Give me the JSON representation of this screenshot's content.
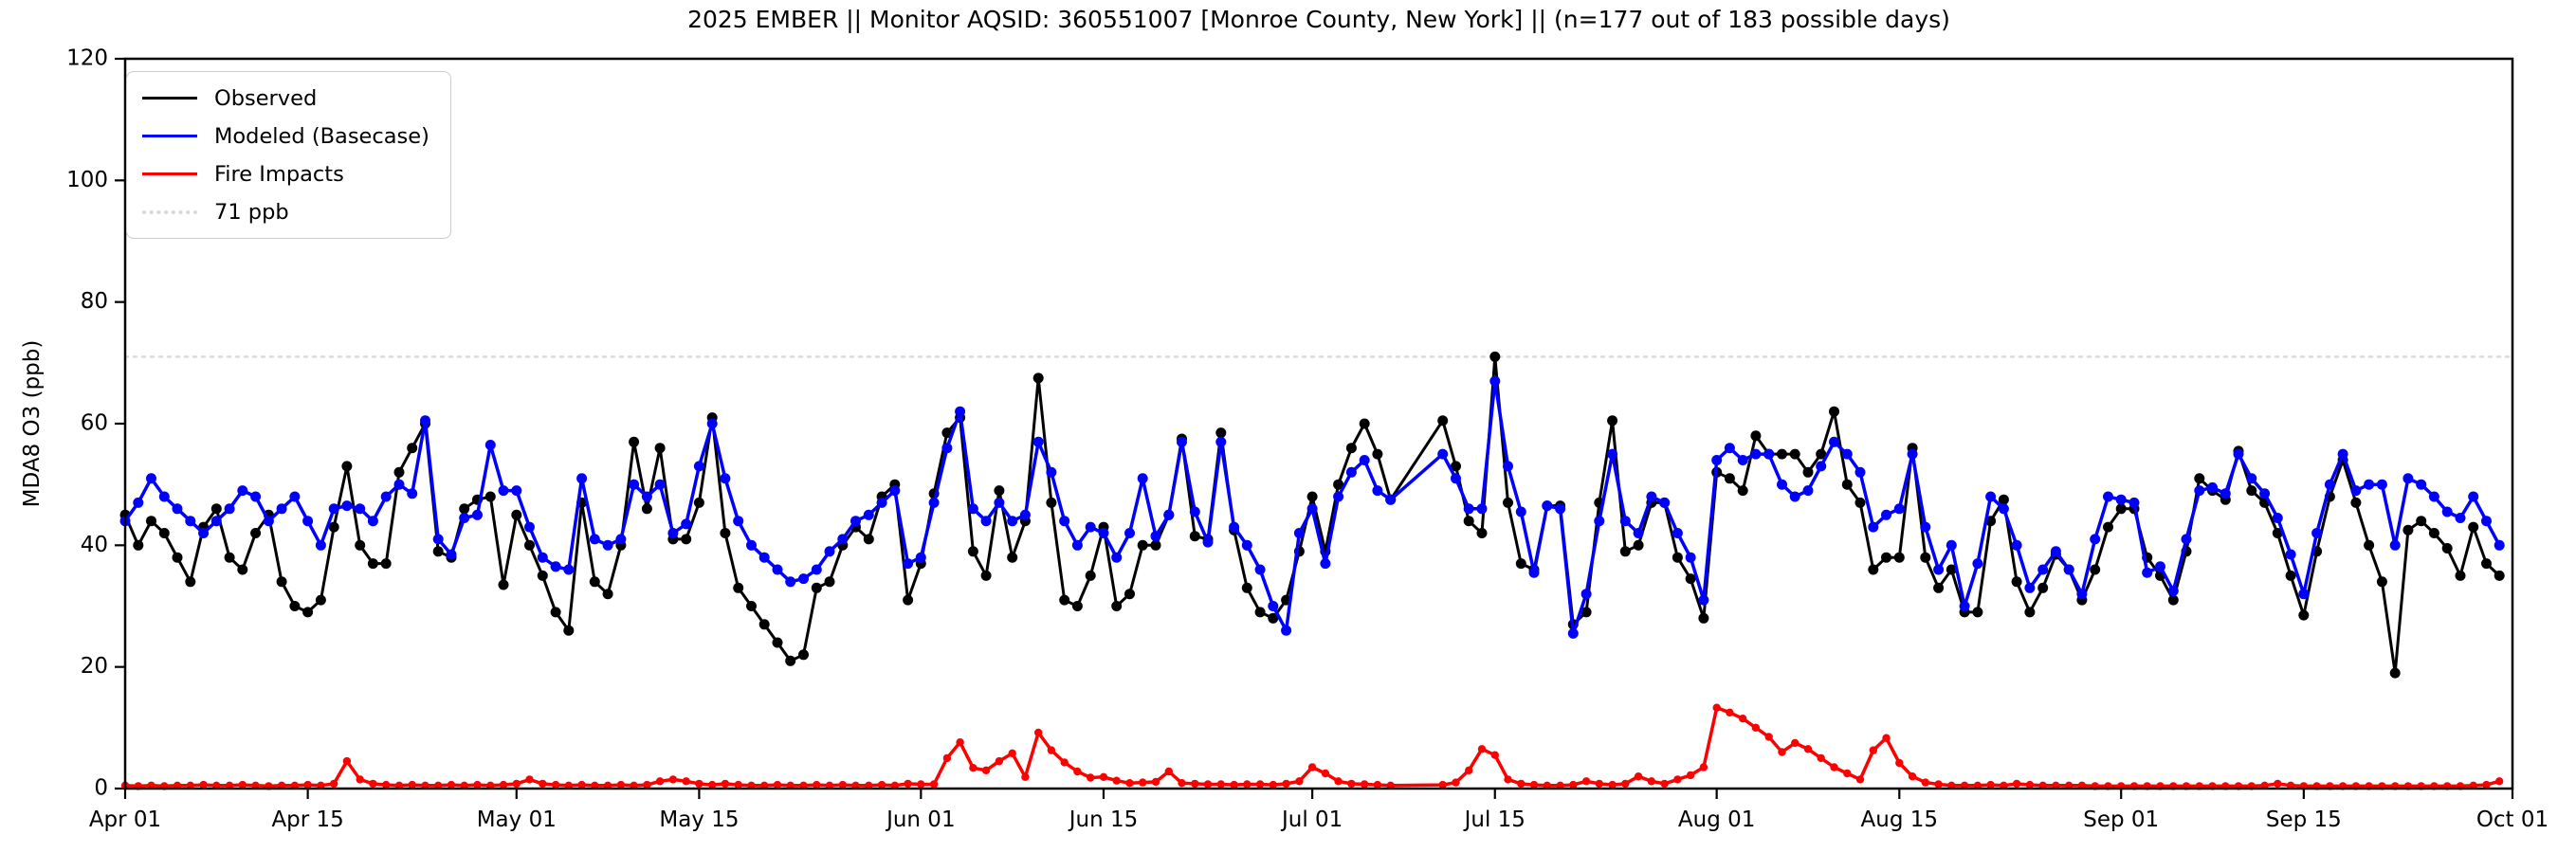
{
  "title": "2025 EMBER || Monitor AQSID: 360551007 [Monroe County, New York] || (n=177 out of 183 possible days)",
  "y_axis": {
    "label": "MDA8 O3 (ppb)",
    "min": 0,
    "max": 120,
    "ticks": [
      0,
      20,
      40,
      60,
      80,
      100,
      120
    ]
  },
  "x_axis": {
    "total_days": 183,
    "ticks": [
      {
        "day": 0,
        "label": "Apr 01"
      },
      {
        "day": 14,
        "label": "Apr 15"
      },
      {
        "day": 30,
        "label": "May 01"
      },
      {
        "day": 44,
        "label": "May 15"
      },
      {
        "day": 61,
        "label": "Jun 01"
      },
      {
        "day": 75,
        "label": "Jun 15"
      },
      {
        "day": 91,
        "label": "Jul 01"
      },
      {
        "day": 105,
        "label": "Jul 15"
      },
      {
        "day": 122,
        "label": "Aug 01"
      },
      {
        "day": 136,
        "label": "Aug 15"
      },
      {
        "day": 153,
        "label": "Sep 01"
      },
      {
        "day": 167,
        "label": "Sep 15"
      },
      {
        "day": 183,
        "label": "Oct 01"
      }
    ]
  },
  "legend": [
    {
      "label": "Observed",
      "color": "#000000",
      "style": "solid"
    },
    {
      "label": "Modeled (Basecase)",
      "color": "#0000ff",
      "style": "solid"
    },
    {
      "label": "Fire Impacts",
      "color": "#ff0000",
      "style": "solid"
    },
    {
      "label": "71 ppb",
      "color": "#d9d9d9",
      "style": "dotted"
    }
  ],
  "threshold": {
    "value": 71,
    "label": "71 ppb",
    "color": "#d9d9d9"
  },
  "chart_data": {
    "type": "line",
    "title": "2025 EMBER || Monitor AQSID: 360551007 [Monroe County, New York] || (n=177 out of 183 possible days)",
    "xlabel": "",
    "ylabel": "MDA8 O3 (ppb)",
    "ylim": [
      0,
      120
    ],
    "x_start": "Apr 01",
    "x_end": "Oct 01",
    "grid": false,
    "legend_position": "upper left",
    "threshold_line": 71,
    "series": [
      {
        "name": "Observed",
        "color": "#000000",
        "marker": "circle",
        "values": [
          45,
          40,
          44,
          42,
          38,
          34,
          43,
          46,
          38,
          36,
          42,
          45,
          34,
          30,
          29,
          31,
          43,
          53,
          40,
          37,
          37,
          52,
          56,
          60,
          39,
          38,
          46,
          47.5,
          48,
          33.5,
          45,
          40,
          35,
          29,
          26,
          47,
          34,
          32,
          40,
          57,
          46,
          56,
          41,
          41,
          47,
          61,
          42,
          33,
          30,
          27,
          24,
          21,
          22,
          33,
          34,
          40,
          43,
          41,
          48,
          50,
          31,
          37,
          48.5,
          58.5,
          61,
          39,
          35,
          49,
          38,
          44,
          67.5,
          47,
          31,
          30,
          35,
          43,
          30,
          32,
          40,
          40,
          45,
          57.5,
          41.5,
          41,
          58.5,
          42.5,
          33,
          29,
          28,
          31,
          39,
          48,
          39,
          50,
          56,
          60,
          55,
          47.5,
          null,
          null,
          null,
          60.5,
          53,
          44,
          42,
          71,
          47,
          37,
          36,
          46.5,
          46.5,
          27,
          29,
          47,
          60.5,
          39,
          40,
          47,
          47,
          38,
          34.5,
          28,
          52,
          51,
          49,
          58,
          55,
          55,
          55,
          52,
          55,
          62,
          50,
          47,
          36,
          38,
          38,
          56,
          38,
          33,
          36,
          29,
          29,
          44,
          47.5,
          34,
          29,
          33,
          38.5,
          36,
          31,
          36,
          43,
          46,
          46,
          38,
          35,
          31,
          39,
          51,
          49,
          47.5,
          55.5,
          49,
          47,
          42,
          35,
          28.5,
          39,
          48,
          54,
          47,
          40,
          34,
          19,
          42.5,
          44,
          42,
          39.5,
          35,
          43,
          37,
          35
        ]
      },
      {
        "name": "Modeled (Basecase)",
        "color": "#0000ff",
        "marker": "circle",
        "values": [
          44,
          47,
          51,
          48,
          46,
          44,
          42,
          44,
          46,
          49,
          48,
          44,
          46,
          48,
          44,
          40,
          46,
          46.5,
          46,
          44,
          48,
          50,
          48.5,
          60.5,
          41,
          38.5,
          44.5,
          45,
          56.5,
          49,
          49,
          43,
          38,
          36.5,
          36,
          51,
          41,
          40,
          41,
          50,
          48,
          50,
          42,
          43.5,
          53,
          60,
          51,
          44,
          40,
          38,
          36,
          34,
          34.5,
          36,
          39,
          41,
          44,
          45,
          47,
          49,
          37,
          38,
          47,
          56,
          62,
          46,
          44,
          47,
          44,
          45,
          57,
          52,
          44,
          40,
          43,
          42,
          38,
          42,
          51,
          41.5,
          45,
          57,
          45.5,
          40.5,
          57,
          43,
          40,
          36,
          30,
          26,
          42,
          46,
          37,
          48,
          52,
          54,
          49,
          47.5,
          null,
          null,
          null,
          55,
          51,
          46,
          46,
          67,
          53,
          45.5,
          35.5,
          46.5,
          46,
          25.5,
          32,
          44,
          55,
          44,
          42,
          48,
          47,
          42,
          38,
          31,
          54,
          56,
          54,
          55,
          55,
          50,
          48,
          49,
          53,
          57,
          55,
          52,
          43,
          45,
          46,
          55,
          43,
          36,
          40,
          30,
          37,
          48,
          46,
          40,
          33,
          36,
          39,
          36,
          32,
          41,
          48,
          47.5,
          47,
          35.5,
          36.5,
          32.5,
          41,
          49,
          49.5,
          48.5,
          55,
          51,
          48.5,
          44.5,
          38.5,
          32,
          42,
          50,
          55,
          49,
          50,
          50,
          40,
          51,
          50,
          48,
          45.5,
          44.5,
          48,
          44,
          40
        ]
      },
      {
        "name": "Fire Impacts",
        "color": "#ff0000",
        "marker": "circle",
        "values": [
          0.5,
          0.4,
          0.5,
          0.4,
          0.5,
          0.5,
          0.6,
          0.5,
          0.5,
          0.6,
          0.5,
          0.4,
          0.5,
          0.5,
          0.6,
          0.5,
          0.8,
          4.5,
          1.5,
          0.8,
          0.6,
          0.5,
          0.6,
          0.5,
          0.5,
          0.6,
          0.5,
          0.6,
          0.5,
          0.6,
          0.8,
          1.5,
          0.8,
          0.6,
          0.5,
          0.6,
          0.5,
          0.5,
          0.6,
          0.5,
          0.6,
          1.2,
          1.5,
          1.2,
          0.8,
          0.6,
          0.8,
          0.6,
          0.5,
          0.5,
          0.6,
          0.5,
          0.5,
          0.6,
          0.5,
          0.6,
          0.5,
          0.5,
          0.6,
          0.5,
          0.8,
          0.7,
          0.7,
          5,
          7.6,
          3.4,
          3,
          4.5,
          5.8,
          1.9,
          9.2,
          6.3,
          4.3,
          2.8,
          1.8,
          1.9,
          1.3,
          0.9,
          1,
          1.1,
          2.8,
          0.9,
          0.8,
          0.7,
          0.7,
          0.6,
          0.7,
          0.7,
          0.6,
          0.8,
          1.2,
          3.5,
          2.5,
          1.2,
          0.8,
          0.7,
          0.6,
          0.5,
          null,
          null,
          null,
          0.6,
          1,
          3,
          6.5,
          5.5,
          1.5,
          0.8,
          0.6,
          0.5,
          0.5,
          0.6,
          1.2,
          0.8,
          0.6,
          0.8,
          2,
          1.2,
          0.8,
          1.5,
          2.2,
          3.5,
          13.3,
          12.5,
          11.5,
          10,
          8.5,
          6,
          7.5,
          6.5,
          5,
          3.5,
          2.5,
          1.5,
          6.3,
          8.3,
          4.2,
          2,
          1,
          0.7,
          0.5,
          0.5,
          0.5,
          0.6,
          0.5,
          0.8,
          0.6,
          0.5,
          0.5,
          0.5,
          0.5,
          0.4,
          0.4,
          0.4,
          0.4,
          0.4,
          0.4,
          0.4,
          0.4,
          0.4,
          0.4,
          0.4,
          0.4,
          0.4,
          0.5,
          0.8,
          0.5,
          0.4,
          0.4,
          0.4,
          0.4,
          0.4,
          0.4,
          0.4,
          0.4,
          0.4,
          0.4,
          0.4,
          0.4,
          0.4,
          0.5,
          0.6,
          1.2
        ]
      }
    ]
  }
}
